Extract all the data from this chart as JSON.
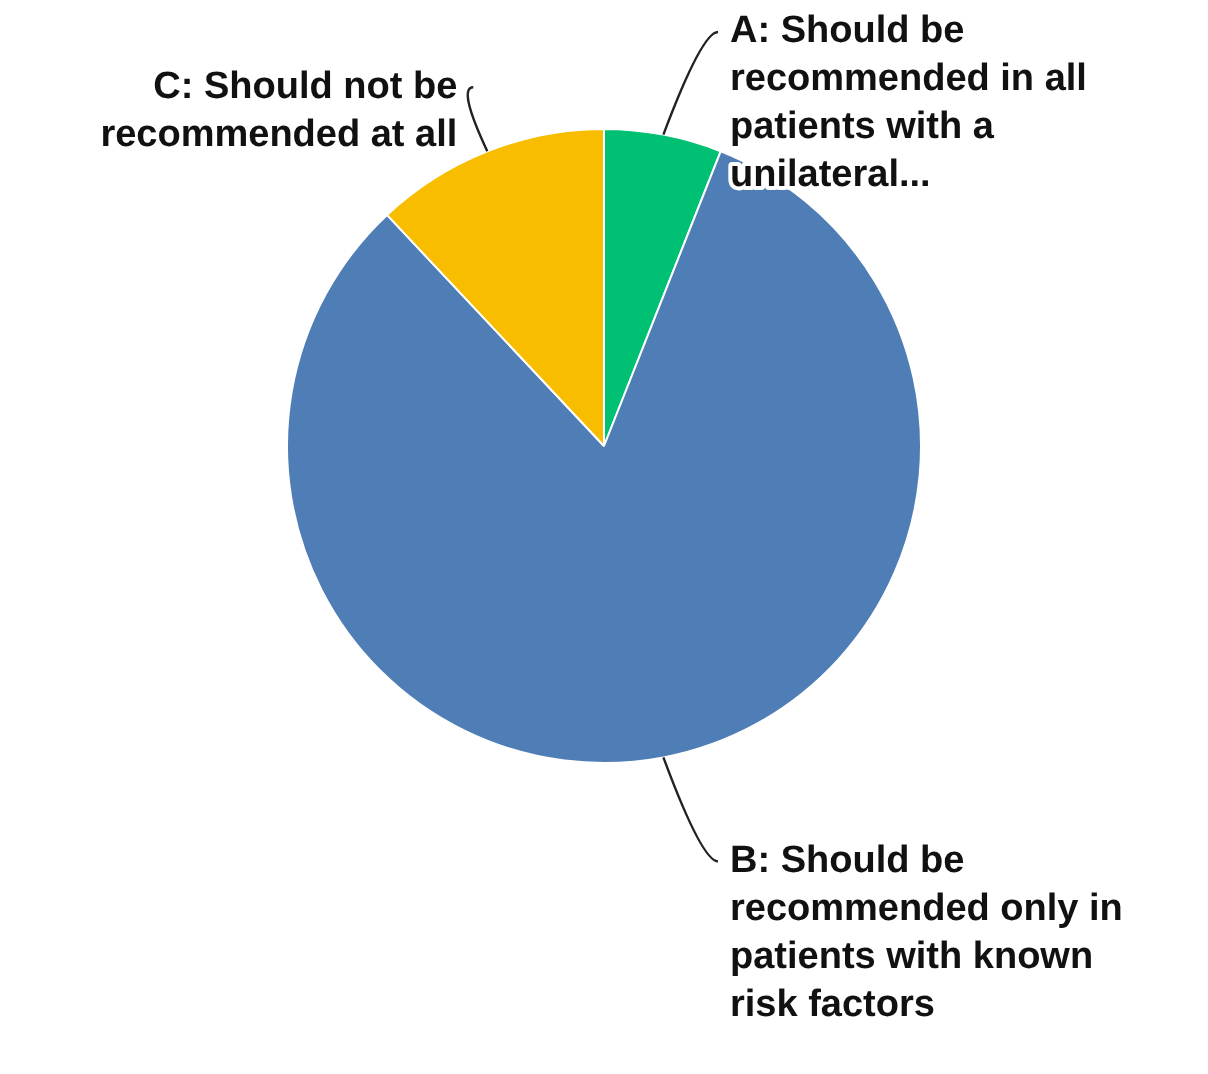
{
  "chart_data": {
    "type": "pie",
    "categories": [
      "A: Should be recommended in all patients with a unilateral...",
      "B: Should be recommended only in patients with known risk factors",
      "C: Should not be recommended at all"
    ],
    "values": [
      6,
      82,
      12
    ],
    "colors": [
      "#00c073",
      "#4f7db6",
      "#f9bd00"
    ],
    "legend": false
  }
}
